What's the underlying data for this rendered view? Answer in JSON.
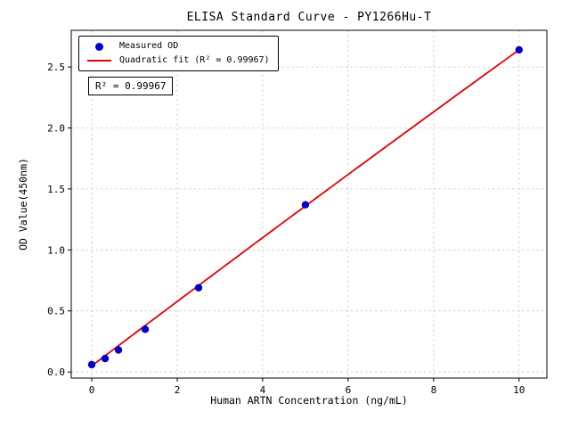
{
  "chart_data": {
    "type": "scatter",
    "title": "ELISA Standard Curve - PY1266Hu-T",
    "xlabel": "Human ARTN Concentration (ng/mL)",
    "ylabel": "OD Value(450nm)",
    "x": [
      0,
      0.313,
      0.625,
      1.25,
      2.5,
      5,
      10
    ],
    "y": [
      0.06,
      0.11,
      0.18,
      0.35,
      0.69,
      1.37,
      2.64
    ],
    "fit": {
      "kind": "quadratic",
      "a": -0.0006,
      "b": 0.265,
      "c": 0.05,
      "r_squared": "0.99967",
      "x_range": [
        0,
        10
      ]
    },
    "xticks": [
      0,
      2,
      4,
      6,
      8,
      10
    ],
    "yticks": [
      0,
      0.5,
      1,
      1.5,
      2,
      2.5
    ],
    "xlim": [
      -0.48,
      10.65
    ],
    "ylim": [
      -0.05,
      2.8
    ],
    "grid": true,
    "legend": {
      "position": "upper-left",
      "entries": [
        {
          "label": "Measured OD",
          "marker": "dot",
          "color": "#0000cc"
        },
        {
          "label": "Quadratic fit (R² = 0.99967)",
          "marker": "line",
          "color": "#e60000"
        }
      ]
    },
    "annotation": "R² = 0.99967",
    "colors": {
      "point": "#0000cc",
      "line": "#e60000",
      "grid": "#c8c8c8",
      "axis": "#000000",
      "background": "#ffffff"
    }
  }
}
